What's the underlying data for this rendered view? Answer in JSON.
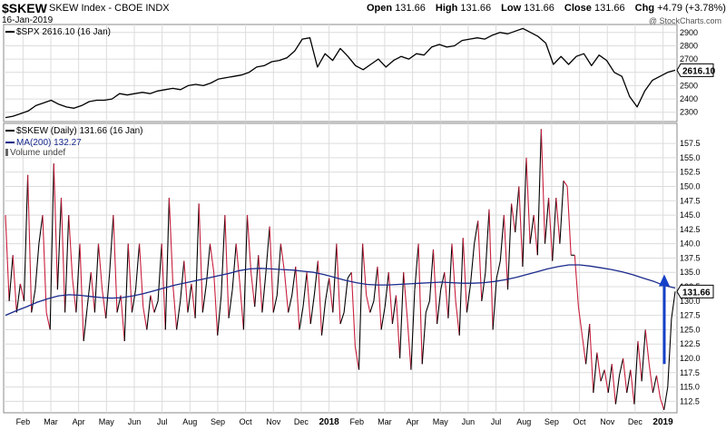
{
  "header": {
    "symbol": "$SKEW",
    "name": "SKEW Index - CBOE INDX",
    "date": "16-Jan-2019",
    "watermark": "@ StockCharts.com",
    "quote": {
      "open_label": "Open",
      "open": "131.66",
      "high_label": "High",
      "high": "131.66",
      "low_label": "Low",
      "low": "131.66",
      "close_label": "Close",
      "close": "131.66",
      "chg_label": "Chg",
      "chg": "+4.79 (+3.78%)"
    }
  },
  "colors": {
    "spx_line": "#000000",
    "skew_up": "#000000",
    "skew_down": "#c81e3c",
    "ma_line": "#1a2a8c",
    "arrow": "#1540c8",
    "grid": "#dcdcdc",
    "badge_bg": "#ffffff"
  },
  "legend": {
    "spx": "$SPX 2616.10 (16 Jan)",
    "skew": "$SKEW (Daily) 131.66 (16 Jan)",
    "ma": "MA(200) 132.27",
    "vol": "Volume undef"
  },
  "badges": {
    "spx": "2616.10",
    "skew": "131.66"
  },
  "chart_data": [
    {
      "type": "line",
      "series": [
        {
          "name": "$SPX",
          "values": [
            2260,
            2270,
            2290,
            2310,
            2350,
            2370,
            2390,
            2360,
            2340,
            2330,
            2350,
            2380,
            2390,
            2390,
            2400,
            2440,
            2430,
            2440,
            2450,
            2440,
            2460,
            2470,
            2480,
            2470,
            2500,
            2510,
            2500,
            2520,
            2550,
            2560,
            2570,
            2580,
            2600,
            2640,
            2650,
            2680,
            2690,
            2710,
            2760,
            2850,
            2860,
            2640,
            2740,
            2690,
            2780,
            2720,
            2650,
            2620,
            2660,
            2700,
            2640,
            2690,
            2720,
            2700,
            2740,
            2730,
            2790,
            2810,
            2790,
            2800,
            2840,
            2850,
            2860,
            2850,
            2880,
            2900,
            2890,
            2910,
            2930,
            2900,
            2870,
            2820,
            2660,
            2720,
            2660,
            2720,
            2740,
            2650,
            2730,
            2690,
            2600,
            2570,
            2420,
            2340,
            2460,
            2540,
            2570,
            2600,
            2616.1
          ]
        }
      ],
      "x_ticks": [
        "Feb",
        "Mar",
        "Apr",
        "May",
        "Jun",
        "Jul",
        "Aug",
        "Sep",
        "Oct",
        "Nov",
        "Dec",
        "2018",
        "Feb",
        "Mar",
        "Apr",
        "May",
        "Jun",
        "Jul",
        "Aug",
        "Sep",
        "Oct",
        "Nov",
        "Dec",
        "2019"
      ],
      "y_ticks": [
        2300,
        2400,
        2500,
        2600,
        2700,
        2800,
        2900
      ],
      "ylim": [
        2230,
        2960
      ],
      "last_value": 2616.1,
      "grid": true
    },
    {
      "type": "line",
      "series": [
        {
          "name": "$SKEW",
          "values": [
            145,
            130,
            138,
            128,
            133,
            130,
            152,
            128,
            132,
            140,
            145,
            128,
            125,
            154,
            132,
            148,
            128,
            145,
            134,
            128,
            140,
            123,
            129,
            135,
            128,
            140,
            132,
            127,
            135,
            145,
            128,
            131,
            123,
            140,
            128,
            132,
            140,
            129,
            125,
            131,
            128,
            130,
            140,
            125,
            148,
            133,
            125,
            130,
            137,
            128,
            133,
            127,
            147,
            128,
            133,
            140,
            135,
            124,
            131,
            145,
            127,
            132,
            140,
            133,
            125,
            145,
            135,
            129,
            138,
            128,
            135,
            143,
            128,
            131,
            140,
            135,
            128,
            131,
            136,
            125,
            129,
            135,
            126,
            131,
            137,
            124,
            130,
            134,
            128,
            140,
            126,
            128,
            134,
            135,
            122,
            118,
            140,
            131,
            128,
            130,
            136,
            125,
            129,
            135,
            126,
            131,
            120,
            135,
            127,
            118,
            132,
            140,
            119,
            128,
            130,
            139,
            126,
            132,
            135,
            127,
            140,
            130,
            124,
            141,
            128,
            133,
            140,
            144,
            130,
            135,
            146,
            125,
            134,
            137,
            145,
            132,
            147,
            142,
            150,
            136,
            155,
            140,
            145,
            138,
            160,
            140,
            148,
            137,
            148,
            140,
            151,
            150,
            138,
            138,
            129,
            124,
            119,
            126,
            114,
            121,
            116,
            118,
            114,
            119,
            112,
            117,
            120,
            114,
            118,
            112,
            123,
            116,
            125,
            119,
            114,
            117,
            113,
            111,
            115,
            126.9,
            131.66
          ]
        },
        {
          "name": "MA(200)",
          "values": [
            127.5,
            128.3,
            129,
            129.8,
            130.4,
            130.9,
            131.1,
            131.0,
            130.8,
            130.6,
            130.5,
            130.6,
            130.9,
            131.3,
            131.8,
            132.3,
            132.8,
            133.2,
            133.6,
            134.0,
            134.4,
            134.8,
            135.3,
            135.6,
            135.7,
            135.6,
            135.5,
            135.4,
            135.2,
            135.0,
            134.6,
            134.1,
            133.6,
            133.2,
            132.9,
            132.8,
            132.8,
            132.9,
            133.0,
            133.1,
            133.2,
            133.3,
            133.2,
            133.1,
            133.1,
            133.2,
            133.4,
            133.7,
            134.1,
            134.6,
            135.1,
            135.6,
            136.0,
            136.3,
            136.3,
            136.1,
            135.8,
            135.5,
            135.1,
            134.6,
            134.0,
            133.4,
            132.7,
            132.27
          ]
        }
      ],
      "x_ticks": [
        "Feb",
        "Mar",
        "Apr",
        "May",
        "Jun",
        "Jul",
        "Aug",
        "Sep",
        "Oct",
        "Nov",
        "Dec",
        "2018",
        "Feb",
        "Mar",
        "Apr",
        "May",
        "Jun",
        "Jul",
        "Aug",
        "Sep",
        "Oct",
        "Nov",
        "Dec",
        "2019"
      ],
      "y_ticks": [
        112.5,
        115.0,
        117.5,
        120.0,
        122.5,
        125.0,
        127.5,
        130.0,
        132.5,
        135.0,
        137.5,
        140.0,
        142.5,
        145.0,
        147.5,
        150.0,
        152.5,
        155.0,
        157.5
      ],
      "ylim": [
        110.5,
        161
      ],
      "last_value": 131.66,
      "annotation": "upward arrow from about 119 to about 134 at the final bars",
      "grid": true
    }
  ]
}
